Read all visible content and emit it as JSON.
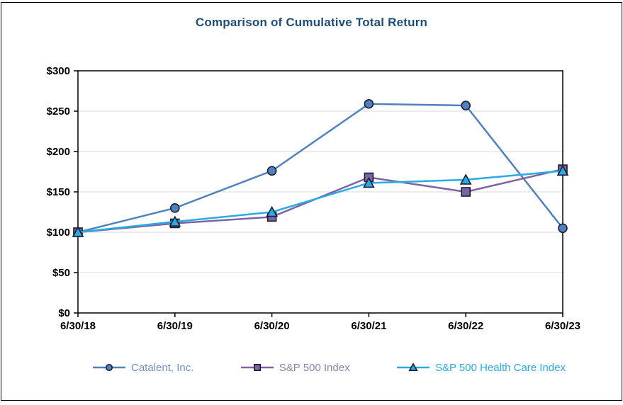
{
  "frame": {
    "background": "#FFFFFF",
    "border_color": "#000000"
  },
  "chart_data": {
    "type": "line",
    "title": "Comparison of Cumulative Total Return",
    "title_color": "#1F4E79",
    "categories": [
      "6/30/18",
      "6/30/19",
      "6/30/20",
      "6/30/21",
      "6/30/22",
      "6/30/23"
    ],
    "series": [
      {
        "name": "Catalent, Inc.",
        "marker": "circle",
        "line_color": "#4F81BD",
        "marker_fill": "#4F81BD",
        "label_color": "#7490C0",
        "values": [
          100,
          130,
          176,
          259,
          257,
          105
        ]
      },
      {
        "name": "S&P 500 Index",
        "marker": "square",
        "line_color": "#8064A2",
        "marker_fill": "#8064A2",
        "label_color": "#9181AE",
        "values": [
          100,
          111,
          119,
          168,
          150,
          178
        ]
      },
      {
        "name": "S&P 500 Health Care Index",
        "marker": "triangle",
        "line_color": "#29ABE2",
        "marker_fill": "#29ABE2",
        "label_color": "#29ABE2",
        "values": [
          100,
          113,
          125,
          161,
          165,
          176
        ]
      }
    ],
    "ylim": [
      0,
      300
    ],
    "y_ticks": [
      {
        "value": 0,
        "label": "$0"
      },
      {
        "value": 50,
        "label": "$50"
      },
      {
        "value": 100,
        "label": "$100"
      },
      {
        "value": 150,
        "label": "$150"
      },
      {
        "value": 200,
        "label": "$200"
      },
      {
        "value": 250,
        "label": "$250"
      },
      {
        "value": 300,
        "label": "$300"
      }
    ],
    "xlabel": "",
    "ylabel": "",
    "grid": "horizontal",
    "grid_color": "#D9D9D9",
    "axis_color": "#000000",
    "marker_stroke": "#1B1B35",
    "legend_position": "bottom"
  }
}
